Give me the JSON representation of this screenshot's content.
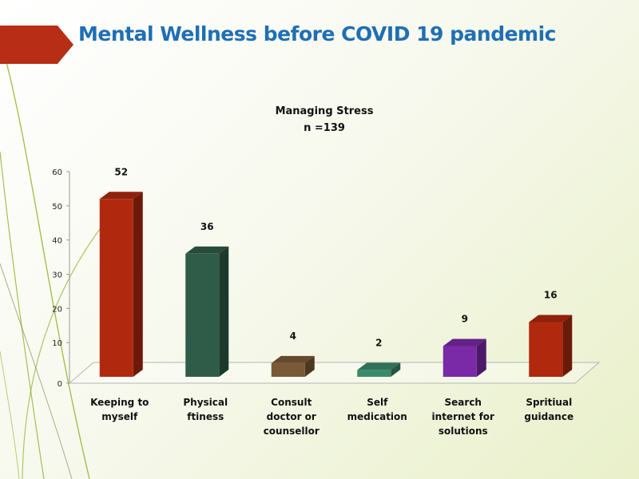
{
  "slide": {
    "title": "Mental Wellness before COVID 19 pandemic",
    "title_color": "#1f6fb5",
    "banner_color": "#b72d15",
    "accent_line_color": "#8fb026"
  },
  "chart_data": {
    "type": "bar",
    "title": "Managing Stress",
    "subtitle": "n =139",
    "categories": [
      [
        "Keeping to",
        "myself"
      ],
      [
        "Physical",
        "ftiness"
      ],
      [
        "Consult",
        "doctor or",
        "counsellor"
      ],
      [
        "Self",
        "medication"
      ],
      [
        "Search",
        "internet for",
        "solutions"
      ],
      [
        "Spritiual",
        "guidance"
      ]
    ],
    "values": [
      52,
      36,
      4,
      2,
      9,
      16
    ],
    "data_labels": [
      "52",
      "36",
      "4",
      "2",
      "9",
      "16"
    ],
    "colors": [
      "#b0290e",
      "#2f5c48",
      "#7a5a36",
      "#3a8a6a",
      "#7a2aa6",
      "#b0290e"
    ],
    "ylim": [
      0,
      60
    ],
    "yticks": [
      "0",
      "10",
      "20",
      "30",
      "40",
      "50",
      "60"
    ],
    "xlabel": "",
    "ylabel": "",
    "grid": false,
    "legend": "none",
    "style": "3d-column"
  }
}
